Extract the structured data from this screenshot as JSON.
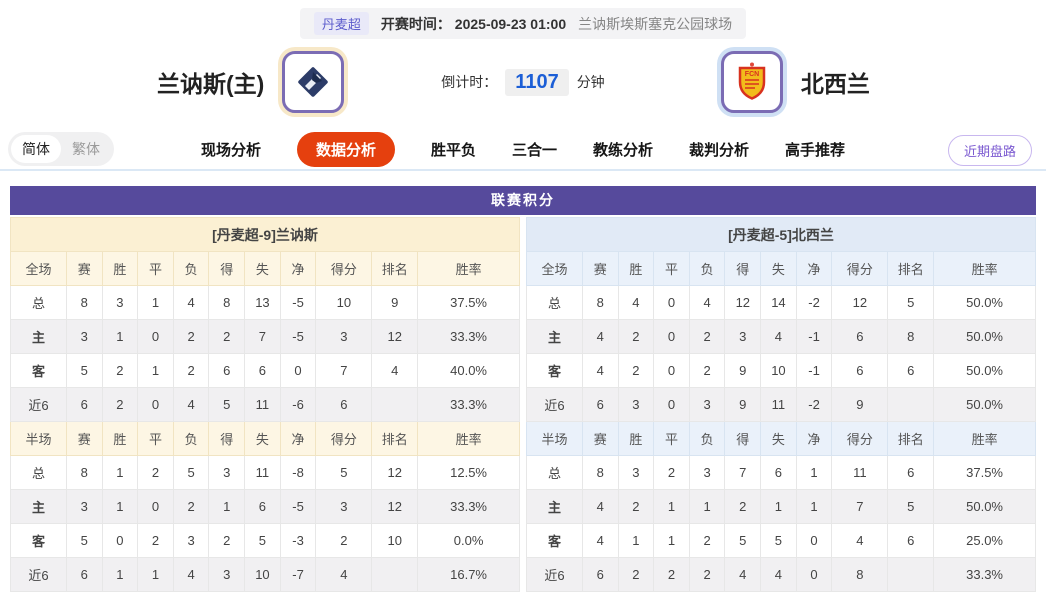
{
  "meta": {
    "league": "丹麦超",
    "kickoff_label": "开赛时间：",
    "kickoff_time": "2025-09-23 01:00",
    "venue": "兰讷斯埃斯塞克公园球场"
  },
  "header": {
    "home_team": "兰讷斯(主)",
    "away_team": "北西兰",
    "countdown_label": "倒计时：",
    "countdown_value": "1107",
    "countdown_unit": "分钟",
    "away_logo_text": "FCN"
  },
  "tabs": {
    "simplified": "简体",
    "traditional": "繁体",
    "items": [
      {
        "label": "现场分析",
        "name": "live-analysis",
        "active": false
      },
      {
        "label": "数据分析",
        "name": "data-analysis",
        "active": true
      },
      {
        "label": "胜平负",
        "name": "win-draw-lose",
        "active": false
      },
      {
        "label": "三合一",
        "name": "three-in-one",
        "active": false
      },
      {
        "label": "教练分析",
        "name": "coach-analysis",
        "active": false
      },
      {
        "label": "裁判分析",
        "name": "referee-analysis",
        "active": false
      },
      {
        "label": "高手推荐",
        "name": "expert-picks",
        "active": false
      }
    ],
    "recent_button": "近期盘路"
  },
  "board": {
    "title": "联赛积分",
    "columns_full": [
      "全场",
      "赛",
      "胜",
      "平",
      "负",
      "得",
      "失",
      "净",
      "得分",
      "排名",
      "胜率"
    ],
    "columns_half": [
      "半场",
      "赛",
      "胜",
      "平",
      "负",
      "得",
      "失",
      "净",
      "得分",
      "排名",
      "胜率"
    ],
    "home": {
      "subtitle": "[丹麦超-9]兰讷斯",
      "full": [
        {
          "label": "总",
          "values": [
            "8",
            "3",
            "1",
            "4",
            "8",
            "13",
            "-5",
            "10",
            "9",
            "37.5%"
          ]
        },
        {
          "label": "主",
          "values": [
            "3",
            "1",
            "0",
            "2",
            "2",
            "7",
            "-5",
            "3",
            "12",
            "33.3%"
          ]
        },
        {
          "label": "客",
          "values": [
            "5",
            "2",
            "1",
            "2",
            "6",
            "6",
            "0",
            "7",
            "4",
            "40.0%"
          ]
        },
        {
          "label": "近6",
          "values": [
            "6",
            "2",
            "0",
            "4",
            "5",
            "11",
            "-6",
            "6",
            "",
            "33.3%"
          ]
        }
      ],
      "half": [
        {
          "label": "总",
          "values": [
            "8",
            "1",
            "2",
            "5",
            "3",
            "11",
            "-8",
            "5",
            "12",
            "12.5%"
          ]
        },
        {
          "label": "主",
          "values": [
            "3",
            "1",
            "0",
            "2",
            "1",
            "6",
            "-5",
            "3",
            "12",
            "33.3%"
          ]
        },
        {
          "label": "客",
          "values": [
            "5",
            "0",
            "2",
            "3",
            "2",
            "5",
            "-3",
            "2",
            "10",
            "0.0%"
          ]
        },
        {
          "label": "近6",
          "values": [
            "6",
            "1",
            "1",
            "4",
            "3",
            "10",
            "-7",
            "4",
            "",
            "16.7%"
          ]
        }
      ]
    },
    "away": {
      "subtitle": "[丹麦超-5]北西兰",
      "full": [
        {
          "label": "总",
          "values": [
            "8",
            "4",
            "0",
            "4",
            "12",
            "14",
            "-2",
            "12",
            "5",
            "50.0%"
          ]
        },
        {
          "label": "主",
          "values": [
            "4",
            "2",
            "0",
            "2",
            "3",
            "4",
            "-1",
            "6",
            "8",
            "50.0%"
          ]
        },
        {
          "label": "客",
          "values": [
            "4",
            "2",
            "0",
            "2",
            "9",
            "10",
            "-1",
            "6",
            "6",
            "50.0%"
          ]
        },
        {
          "label": "近6",
          "values": [
            "6",
            "3",
            "0",
            "3",
            "9",
            "11",
            "-2",
            "9",
            "",
            "50.0%"
          ]
        }
      ],
      "half": [
        {
          "label": "总",
          "values": [
            "8",
            "3",
            "2",
            "3",
            "7",
            "6",
            "1",
            "11",
            "6",
            "37.5%"
          ]
        },
        {
          "label": "主",
          "values": [
            "4",
            "2",
            "1",
            "1",
            "2",
            "1",
            "1",
            "7",
            "5",
            "50.0%"
          ]
        },
        {
          "label": "客",
          "values": [
            "4",
            "1",
            "1",
            "2",
            "5",
            "5",
            "0",
            "4",
            "6",
            "25.0%"
          ]
        },
        {
          "label": "近6",
          "values": [
            "6",
            "2",
            "2",
            "2",
            "4",
            "4",
            "0",
            "8",
            "",
            "33.3%"
          ]
        }
      ]
    }
  },
  "colors": {
    "purple_header": "#564a9c",
    "active_tab_red": "#e5400e",
    "home_tint": "#fbf0d3",
    "away_tint": "#e1eaf6",
    "countdown_blue": "#1b5ed6",
    "home_label_red": "#cc2200",
    "away_label_blue": "#2233cc"
  }
}
